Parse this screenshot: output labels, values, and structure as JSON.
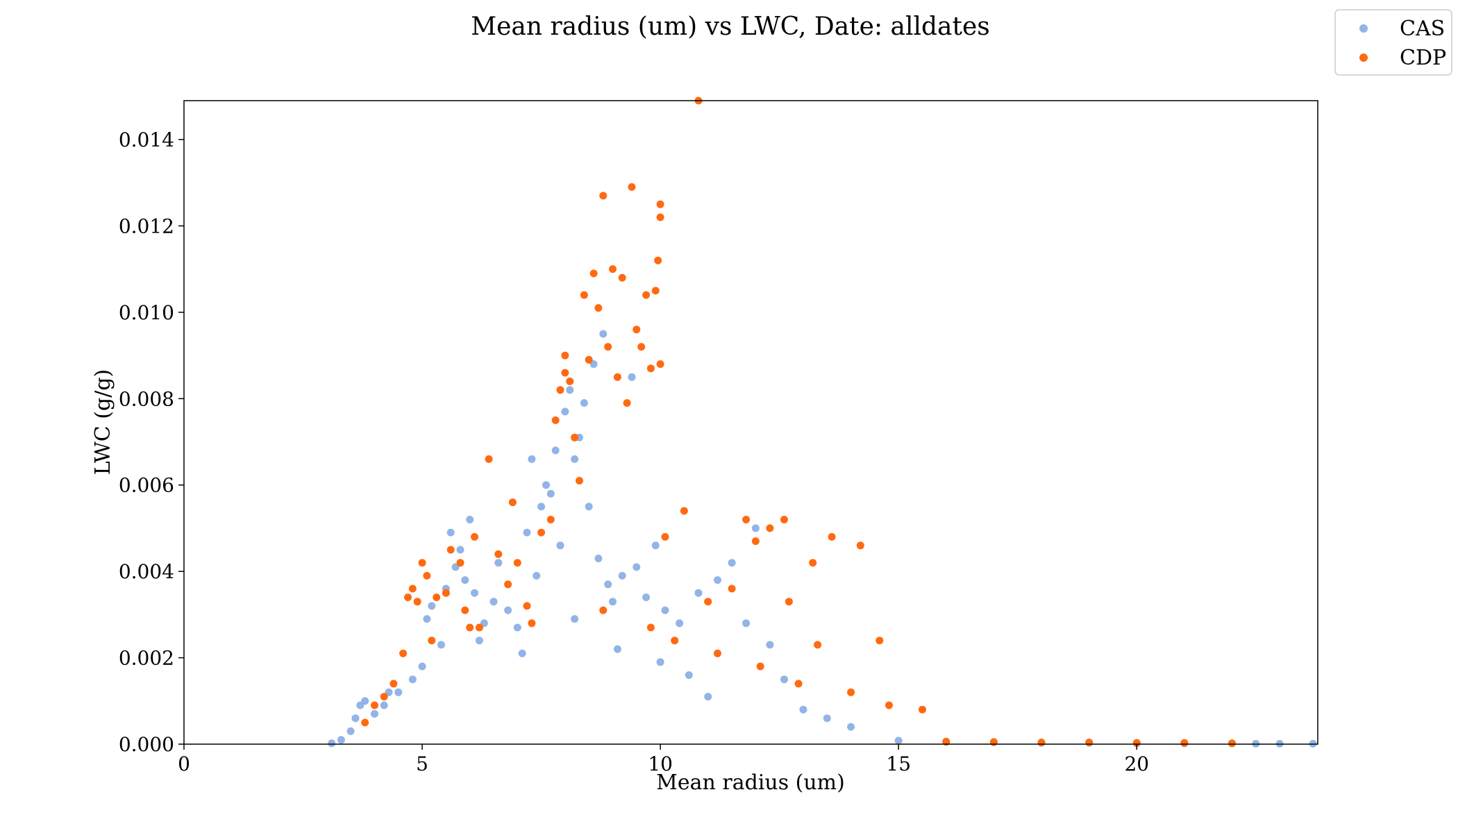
{
  "chart_data": {
    "type": "scatter",
    "title": "Mean radius (um) vs LWC, Date: alldates",
    "xlabel": "Mean radius (um)",
    "ylabel": "LWC (g/g)",
    "xlim": [
      0,
      23.8
    ],
    "ylim": [
      0,
      0.0149
    ],
    "x_ticks": [
      0,
      5,
      10,
      15,
      20
    ],
    "y_ticks": [
      0.0,
      0.002,
      0.004,
      0.006,
      0.008,
      0.01,
      0.012,
      0.014
    ],
    "x_tick_labels": [
      "0",
      "5",
      "10",
      "15",
      "20"
    ],
    "y_tick_labels": [
      "0.000",
      "0.002",
      "0.004",
      "0.006",
      "0.008",
      "0.010",
      "0.012",
      "0.014"
    ],
    "grid": false,
    "legend": "top-right, outside plot",
    "series": [
      {
        "name": "CAS",
        "color": "#92b4e6",
        "points": [
          [
            3.1,
            2e-05
          ],
          [
            3.3,
            0.0001
          ],
          [
            3.5,
            0.0003
          ],
          [
            3.6,
            0.0006
          ],
          [
            3.7,
            0.0009
          ],
          [
            3.8,
            0.001
          ],
          [
            4.0,
            0.0007
          ],
          [
            4.2,
            0.0009
          ],
          [
            4.5,
            0.0012
          ],
          [
            4.8,
            0.0015
          ],
          [
            5.0,
            0.0018
          ],
          [
            5.1,
            0.0029
          ],
          [
            5.2,
            0.0032
          ],
          [
            5.4,
            0.0023
          ],
          [
            5.5,
            0.0036
          ],
          [
            5.6,
            0.0049
          ],
          [
            5.7,
            0.0041
          ],
          [
            5.8,
            0.0045
          ],
          [
            5.9,
            0.0038
          ],
          [
            6.0,
            0.0052
          ],
          [
            6.1,
            0.0035
          ],
          [
            6.3,
            0.0028
          ],
          [
            6.5,
            0.0033
          ],
          [
            6.6,
            0.0042
          ],
          [
            6.8,
            0.0031
          ],
          [
            6.9,
            0.0056
          ],
          [
            7.0,
            0.0027
          ],
          [
            7.2,
            0.0049
          ],
          [
            7.3,
            0.0066
          ],
          [
            7.4,
            0.0039
          ],
          [
            7.5,
            0.0055
          ],
          [
            7.6,
            0.006
          ],
          [
            7.7,
            0.0058
          ],
          [
            7.8,
            0.0068
          ],
          [
            7.9,
            0.0046
          ],
          [
            8.0,
            0.0077
          ],
          [
            8.1,
            0.0082
          ],
          [
            8.2,
            0.0066
          ],
          [
            8.3,
            0.0071
          ],
          [
            8.4,
            0.0079
          ],
          [
            8.5,
            0.0055
          ],
          [
            8.6,
            0.0088
          ],
          [
            8.7,
            0.0043
          ],
          [
            8.8,
            0.0095
          ],
          [
            8.9,
            0.0037
          ],
          [
            9.0,
            0.0033
          ],
          [
            9.2,
            0.0039
          ],
          [
            9.4,
            0.0085
          ],
          [
            9.5,
            0.0041
          ],
          [
            9.7,
            0.0034
          ],
          [
            9.9,
            0.0046
          ],
          [
            10.1,
            0.0031
          ],
          [
            10.4,
            0.0028
          ],
          [
            10.8,
            0.0035
          ],
          [
            11.2,
            0.0038
          ],
          [
            11.5,
            0.0042
          ],
          [
            11.8,
            0.0028
          ],
          [
            12.0,
            0.005
          ],
          [
            12.3,
            0.0023
          ],
          [
            12.6,
            0.0015
          ],
          [
            13.0,
            0.0008
          ],
          [
            13.5,
            0.0006
          ],
          [
            14.0,
            0.0004
          ],
          [
            15.0,
            8e-05
          ],
          [
            16.0,
            5e-05
          ],
          [
            17.0,
            4e-05
          ],
          [
            18.0,
            3e-05
          ],
          [
            19.0,
            3e-05
          ],
          [
            20.0,
            2e-05
          ],
          [
            21.0,
            2e-05
          ],
          [
            22.0,
            2e-05
          ],
          [
            22.5,
            1e-05
          ],
          [
            23.0,
            1e-05
          ],
          [
            23.7,
            1e-05
          ],
          [
            4.3,
            0.0012
          ],
          [
            6.2,
            0.0024
          ],
          [
            7.1,
            0.0021
          ],
          [
            8.2,
            0.0029
          ],
          [
            9.1,
            0.0022
          ],
          [
            10.0,
            0.0019
          ],
          [
            10.6,
            0.0016
          ],
          [
            11.0,
            0.0011
          ]
        ]
      },
      {
        "name": "CDP",
        "color": "#ff6a10",
        "points": [
          [
            3.8,
            0.0005
          ],
          [
            4.0,
            0.0009
          ],
          [
            4.2,
            0.0011
          ],
          [
            4.4,
            0.0014
          ],
          [
            4.6,
            0.0021
          ],
          [
            4.7,
            0.0034
          ],
          [
            4.8,
            0.0036
          ],
          [
            4.9,
            0.0033
          ],
          [
            5.0,
            0.0042
          ],
          [
            5.1,
            0.0039
          ],
          [
            5.3,
            0.0034
          ],
          [
            5.5,
            0.0035
          ],
          [
            5.6,
            0.0045
          ],
          [
            5.8,
            0.0042
          ],
          [
            5.9,
            0.0031
          ],
          [
            6.1,
            0.0048
          ],
          [
            6.2,
            0.0027
          ],
          [
            6.4,
            0.0066
          ],
          [
            6.6,
            0.0044
          ],
          [
            6.8,
            0.0037
          ],
          [
            6.9,
            0.0056
          ],
          [
            7.0,
            0.0042
          ],
          [
            7.2,
            0.0032
          ],
          [
            7.5,
            0.0049
          ],
          [
            7.7,
            0.0052
          ],
          [
            7.8,
            0.0075
          ],
          [
            7.9,
            0.0082
          ],
          [
            8.0,
            0.0086
          ],
          [
            8.0,
            0.009
          ],
          [
            8.1,
            0.0084
          ],
          [
            8.2,
            0.0071
          ],
          [
            8.3,
            0.0061
          ],
          [
            8.4,
            0.0104
          ],
          [
            8.5,
            0.0089
          ],
          [
            8.6,
            0.0109
          ],
          [
            8.7,
            0.0101
          ],
          [
            8.8,
            0.0127
          ],
          [
            8.9,
            0.0092
          ],
          [
            9.0,
            0.011
          ],
          [
            9.1,
            0.0085
          ],
          [
            9.2,
            0.0108
          ],
          [
            9.3,
            0.0079
          ],
          [
            9.4,
            0.0129
          ],
          [
            9.5,
            0.0096
          ],
          [
            9.6,
            0.0092
          ],
          [
            9.7,
            0.0104
          ],
          [
            9.8,
            0.0087
          ],
          [
            9.9,
            0.0105
          ],
          [
            9.95,
            0.0112
          ],
          [
            10.0,
            0.0125
          ],
          [
            10.0,
            0.0122
          ],
          [
            10.0,
            0.0088
          ],
          [
            10.1,
            0.0048
          ],
          [
            10.5,
            0.0054
          ],
          [
            10.8,
            0.0149
          ],
          [
            11.0,
            0.0033
          ],
          [
            11.5,
            0.0036
          ],
          [
            11.8,
            0.0052
          ],
          [
            12.0,
            0.0047
          ],
          [
            12.3,
            0.005
          ],
          [
            12.6,
            0.0052
          ],
          [
            12.7,
            0.0033
          ],
          [
            13.2,
            0.0042
          ],
          [
            13.6,
            0.0048
          ],
          [
            14.2,
            0.0046
          ],
          [
            14.6,
            0.0024
          ],
          [
            14.0,
            0.0012
          ],
          [
            14.8,
            0.0009
          ],
          [
            15.5,
            0.0008
          ],
          [
            12.9,
            0.0014
          ],
          [
            13.3,
            0.0023
          ],
          [
            16.0,
            6e-05
          ],
          [
            17.0,
            5e-05
          ],
          [
            18.0,
            4e-05
          ],
          [
            19.0,
            4e-05
          ],
          [
            20.0,
            3e-05
          ],
          [
            21.0,
            3e-05
          ],
          [
            22.0,
            2e-05
          ],
          [
            5.2,
            0.0024
          ],
          [
            6.0,
            0.0027
          ],
          [
            7.3,
            0.0028
          ],
          [
            8.8,
            0.0031
          ],
          [
            9.8,
            0.0027
          ],
          [
            10.3,
            0.0024
          ],
          [
            11.2,
            0.0021
          ],
          [
            12.1,
            0.0018
          ]
        ]
      }
    ]
  }
}
